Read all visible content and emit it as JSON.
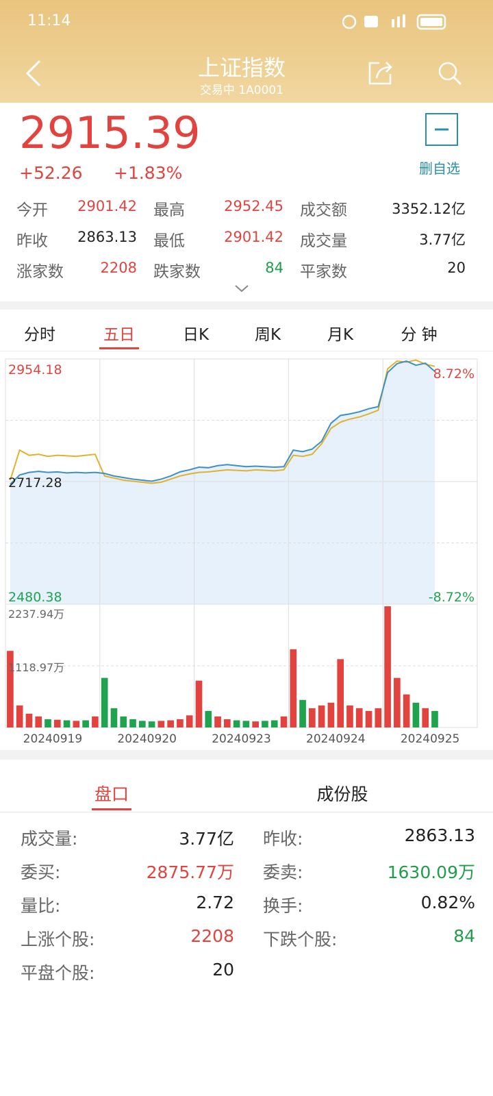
{
  "status_bar": {
    "time": "11:14"
  },
  "header": {
    "title": "上证指数",
    "subtitle": "交易中 1A0001"
  },
  "quote": {
    "price": "2915.39",
    "change": "+52.26",
    "change_pct": "+1.83%",
    "watch_label": "删自选",
    "color": "#e2433f"
  },
  "stats": [
    {
      "label": "今开",
      "value": "2901.42",
      "color": "#e2433f"
    },
    {
      "label": "最高",
      "value": "2952.45",
      "color": "#e2433f"
    },
    {
      "label": "成交额",
      "value": "3352.12亿",
      "color": "#222222"
    },
    {
      "label": "昨收",
      "value": "2863.13",
      "color": "#222222"
    },
    {
      "label": "最低",
      "value": "2901.42",
      "color": "#e2433f"
    },
    {
      "label": "成交量",
      "value": "3.77亿",
      "color": "#222222"
    },
    {
      "label": "涨家数",
      "value": "2208",
      "color": "#e2433f"
    },
    {
      "label": "跌家数",
      "value": "84",
      "color": "#1f9d4a"
    },
    {
      "label": "平家数",
      "value": "20",
      "color": "#222222"
    }
  ],
  "tabs": {
    "items": [
      "分时",
      "五日",
      "日K",
      "周K",
      "月K",
      "分 钟"
    ],
    "active": 1
  },
  "chart": {
    "type": "line",
    "ylim": [
      2480.38,
      2954.18
    ],
    "price_labels": {
      "top": "2954.18",
      "mid": "2717.28",
      "bottom": "2480.38",
      "top_pct": "8.72%",
      "bottom_pct": "-8.72%"
    },
    "slots_per_day": 10,
    "dates": [
      "20240919",
      "20240920",
      "20240923",
      "20240924",
      "20240925"
    ],
    "series": [
      {
        "name": "price",
        "color": "#3d8fc7",
        "values": [
          2712,
          2730,
          2735,
          2737,
          2735,
          2736,
          2734,
          2735,
          2734,
          2735,
          2733,
          2728,
          2725,
          2722,
          2720,
          2718,
          2722,
          2728,
          2736,
          2740,
          2745,
          2744,
          2748,
          2750,
          2748,
          2746,
          2747,
          2746,
          2745,
          2746,
          2778,
          2775,
          2780,
          2795,
          2830,
          2845,
          2848,
          2852,
          2858,
          2862,
          2928,
          2945,
          2950,
          2942,
          2946,
          2930
        ]
      },
      {
        "name": "average",
        "color": "#e2b12d",
        "values": [
          2720,
          2778,
          2768,
          2770,
          2766,
          2768,
          2767,
          2766,
          2768,
          2770,
          2728,
          2724,
          2720,
          2718,
          2716,
          2714,
          2716,
          2722,
          2728,
          2732,
          2735,
          2736,
          2738,
          2740,
          2739,
          2738,
          2740,
          2739,
          2738,
          2740,
          2768,
          2766,
          2770,
          2790,
          2820,
          2832,
          2838,
          2842,
          2848,
          2855,
          2935,
          2950,
          2948,
          2952,
          2944,
          2940
        ]
      }
    ],
    "area_color": "#e6f1fb",
    "volume_labels": [
      "2237.94万",
      "1118.97万"
    ],
    "vlim": [
      0,
      2237.94
    ],
    "volume": [
      1390,
      400,
      250,
      200,
      150,
      140,
      130,
      120,
      130,
      200,
      900,
      350,
      200,
      150,
      120,
      110,
      120,
      130,
      150,
      220,
      850,
      300,
      200,
      150,
      130,
      120,
      110,
      120,
      130,
      200,
      1420,
      500,
      350,
      400,
      450,
      1240,
      400,
      350,
      300,
      350,
      2200,
      900,
      600,
      450,
      350,
      300
    ],
    "up_color": "#e2433f",
    "down_color": "#1fa34f"
  },
  "bottom_tabs": {
    "items": [
      "盘口",
      "成份股"
    ],
    "active": 0
  },
  "details": [
    {
      "label": "成交量:",
      "value": "3.77亿",
      "color": "#222222"
    },
    {
      "label": "昨收:",
      "value": "2863.13",
      "color": "#222222"
    },
    {
      "label": "委买:",
      "value": "2875.77万",
      "color": "#e2433f"
    },
    {
      "label": "委卖:",
      "value": "1630.09万",
      "color": "#1f9d4a"
    },
    {
      "label": "量比:",
      "value": "2.72",
      "color": "#222222"
    },
    {
      "label": "换手:",
      "value": "0.82%",
      "color": "#222222"
    },
    {
      "label": "上涨个股:",
      "value": "2208",
      "color": "#e2433f"
    },
    {
      "label": "下跌个股:",
      "value": "84",
      "color": "#1f9d4a"
    },
    {
      "label": "平盘个股:",
      "value": "20",
      "color": "#222222"
    }
  ]
}
